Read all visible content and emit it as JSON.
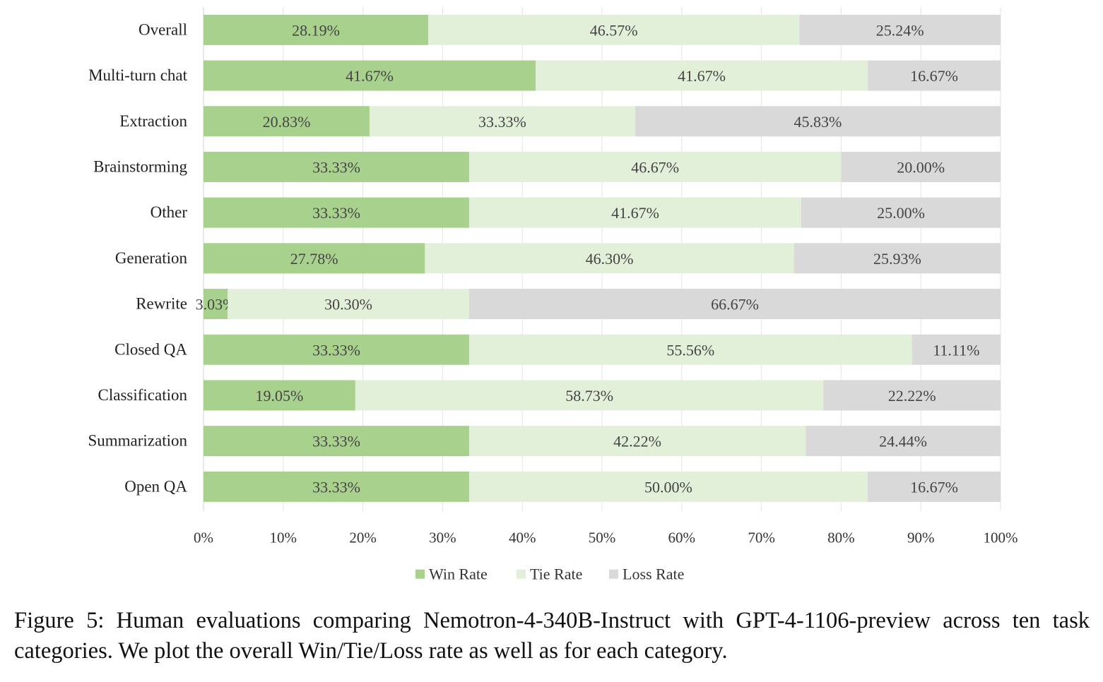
{
  "chart_data": {
    "type": "bar",
    "orientation": "horizontal",
    "stacked": true,
    "categories": [
      "Overall",
      "Multi-turn chat",
      "Extraction",
      "Brainstorming",
      "Other",
      "Generation",
      "Rewrite",
      "Closed QA",
      "Classification",
      "Summarization",
      "Open QA"
    ],
    "series": [
      {
        "name": "Win Rate",
        "color": "#a9d18e",
        "values": [
          28.19,
          41.67,
          20.83,
          33.33,
          33.33,
          27.78,
          3.03,
          33.33,
          19.05,
          33.33,
          33.33
        ],
        "labels": [
          "28.19%",
          "41.67%",
          "20.83%",
          "33.33%",
          "33.33%",
          "27.78%",
          "3.03%",
          "33.33%",
          "19.05%",
          "33.33%",
          "33.33%"
        ]
      },
      {
        "name": "Tie Rate",
        "color": "#e2f0d9",
        "values": [
          46.57,
          41.67,
          33.33,
          46.67,
          41.67,
          46.3,
          30.3,
          55.56,
          58.73,
          42.22,
          50.0
        ],
        "labels": [
          "46.57%",
          "41.67%",
          "33.33%",
          "46.67%",
          "41.67%",
          "46.30%",
          "30.30%",
          "55.56%",
          "58.73%",
          "42.22%",
          "50.00%"
        ]
      },
      {
        "name": "Loss Rate",
        "color": "#d9d9d9",
        "values": [
          25.24,
          16.67,
          45.83,
          20.0,
          25.0,
          25.93,
          66.67,
          11.11,
          22.22,
          24.44,
          16.67
        ],
        "labels": [
          "25.24%",
          "16.67%",
          "45.83%",
          "20.00%",
          "25.00%",
          "25.93%",
          "66.67%",
          "11.11%",
          "22.22%",
          "24.44%",
          "16.67%"
        ]
      }
    ],
    "xlim": [
      0,
      100
    ],
    "xticks": [
      "0%",
      "10%",
      "20%",
      "30%",
      "40%",
      "50%",
      "60%",
      "70%",
      "80%",
      "90%",
      "100%"
    ],
    "grid": true,
    "legend": "bottom"
  },
  "caption": "Figure 5: Human evaluations comparing Nemotron-4-340B-Instruct with GPT-4-1106-preview across ten task categories. We plot the overall Win/Tie/Loss rate as well as for each category."
}
